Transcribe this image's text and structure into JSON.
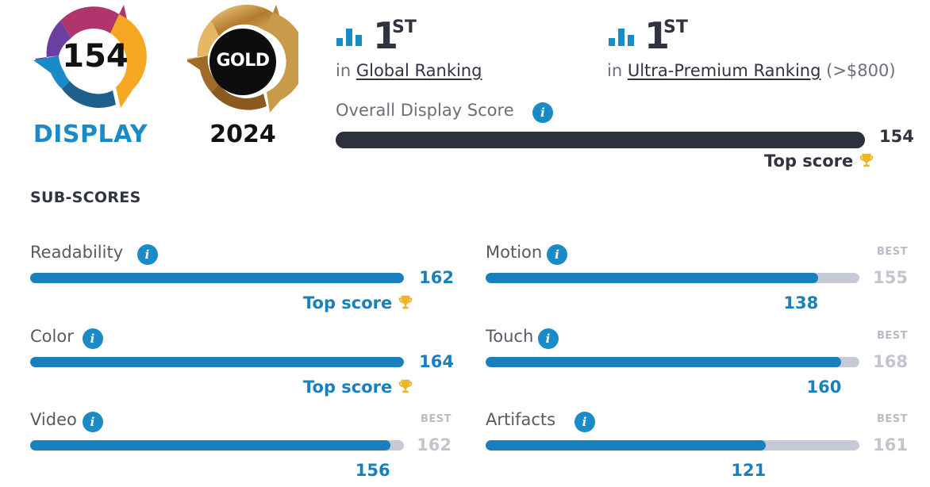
{
  "badges": {
    "display_score": "154",
    "display_label": "DISPLAY",
    "award_label": "GOLD",
    "award_year": "2024"
  },
  "rankings": [
    {
      "rank": "1",
      "suffix": "ST",
      "prefix": "in",
      "link_text": "Global Ranking",
      "extra": ""
    },
    {
      "rank": "1",
      "suffix": "ST",
      "prefix": "in",
      "link_text": "Ultra-Premium Ranking",
      "extra": "(>$800)"
    }
  ],
  "overall": {
    "title": "Overall Display Score",
    "value": "154",
    "fraction": 1.0,
    "top_score_label": "Top score"
  },
  "subscores_title": "SUB-SCORES",
  "subscores": [
    {
      "name": "Readability",
      "value": "162",
      "fraction": 1.0,
      "top_score_label": "Top score",
      "best_label": "",
      "best_value": ""
    },
    {
      "name": "Motion",
      "value": "138",
      "fraction": 0.89,
      "top_score_label": "",
      "best_label": "BEST",
      "best_value": "155"
    },
    {
      "name": "Color",
      "value": "164",
      "fraction": 1.0,
      "top_score_label": "Top score",
      "best_label": "",
      "best_value": ""
    },
    {
      "name": "Touch",
      "value": "160",
      "fraction": 0.952,
      "top_score_label": "",
      "best_label": "BEST",
      "best_value": "168"
    },
    {
      "name": "Video",
      "value": "156",
      "fraction": 0.963,
      "top_score_label": "",
      "best_label": "BEST",
      "best_value": "162"
    },
    {
      "name": "Artifacts",
      "value": "121",
      "fraction": 0.75,
      "top_score_label": "",
      "best_label": "BEST",
      "best_value": "161"
    }
  ],
  "colors": {
    "accent_blue": "#1a7fbd",
    "dark_bar": "#2d313c",
    "track_grey": "#c6c9d6",
    "trophy_gold": "#f0b429"
  },
  "icons": {
    "info": "info-icon",
    "trophy": "trophy-icon",
    "ranking": "bar-chart-icon"
  }
}
